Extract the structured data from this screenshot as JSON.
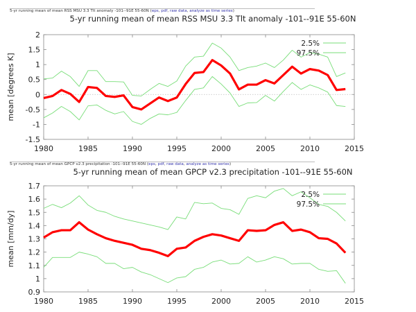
{
  "links_label": [
    "eps",
    "pdf",
    "raw data",
    "analyze as time series"
  ],
  "chart_data": [
    {
      "type": "line",
      "caption": "5-yr running mean of mean RSS MSU 3.3 Tlt anomaly -101--91E 55-60N",
      "title": "5-yr running mean of mean RSS MSU 3.3 Tlt anomaly -101--91E 55-60N",
      "xlabel": "",
      "ylabel": "mean [degrees K]",
      "xlim": [
        1980,
        2015
      ],
      "ylim": [
        -1.5,
        2
      ],
      "xticks": [
        "1980",
        "1985",
        "1990",
        "1995",
        "2000",
        "2005",
        "2010",
        "2015"
      ],
      "yticks": [
        "-1.5",
        "-1",
        "-0.5",
        "0",
        "0.5",
        "1",
        "1.5",
        "2"
      ],
      "zero_line": true,
      "legend_placement": "top-right",
      "x": [
        1980,
        1981,
        1982,
        1983,
        1984,
        1985,
        1986,
        1987,
        1988,
        1989,
        1990,
        1991,
        1992,
        1993,
        1994,
        1995,
        1996,
        1997,
        1998,
        1999,
        2000,
        2001,
        2002,
        2003,
        2004,
        2005,
        2006,
        2007,
        2008,
        2009,
        2010,
        2011,
        2012,
        2013,
        2014
      ],
      "series": [
        {
          "values": [
            -0.12,
            -0.05,
            0.15,
            0.02,
            -0.25,
            0.25,
            0.22,
            -0.05,
            -0.08,
            -0.03,
            -0.42,
            -0.5,
            -0.3,
            -0.1,
            -0.22,
            -0.1,
            0.35,
            0.72,
            0.75,
            1.15,
            0.97,
            0.7,
            0.17,
            0.33,
            0.33,
            0.48,
            0.37,
            0.65,
            0.93,
            0.7,
            0.85,
            0.8,
            0.65,
            0.15,
            0.18
          ],
          "color": "#ff0000"
        },
        {
          "name": "2.5%",
          "values": [
            -0.78,
            -0.62,
            -0.4,
            -0.57,
            -0.85,
            -0.38,
            -0.35,
            -0.53,
            -0.65,
            -0.57,
            -0.9,
            -1.0,
            -0.8,
            -0.65,
            -0.68,
            -0.6,
            -0.2,
            0.17,
            0.22,
            0.6,
            0.35,
            0.05,
            -0.4,
            -0.28,
            -0.27,
            -0.03,
            -0.22,
            0.1,
            0.4,
            0.17,
            0.32,
            0.22,
            0.08,
            -0.37,
            -0.4
          ],
          "color": "#77dd77"
        },
        {
          "name": "97.5%",
          "values": [
            0.52,
            0.55,
            0.78,
            0.6,
            0.27,
            0.8,
            0.8,
            0.43,
            0.43,
            0.42,
            -0.03,
            -0.05,
            0.17,
            0.37,
            0.27,
            0.45,
            0.95,
            1.25,
            1.28,
            1.72,
            1.55,
            1.25,
            0.8,
            0.9,
            0.95,
            1.05,
            0.9,
            1.15,
            1.48,
            1.25,
            1.4,
            1.35,
            1.25,
            0.6,
            0.72
          ],
          "color": "#77dd77"
        }
      ]
    },
    {
      "type": "line",
      "caption": "5-yr running mean of mean GPCP v2.3 precipitation -101--91E 55-60N",
      "title": "5-yr running mean of mean GPCP v2.3 precipitation -101--91E 55-60N",
      "xlabel": "",
      "ylabel": "mean [mm/dy]",
      "xlim": [
        1980,
        2015
      ],
      "ylim": [
        0.9,
        1.7
      ],
      "xticks": [
        "1980",
        "1985",
        "1990",
        "1995",
        "2000",
        "2005",
        "2010",
        "2015"
      ],
      "yticks": [
        "0.9",
        "1",
        "1.1",
        "1.2",
        "1.3",
        "1.4",
        "1.5",
        "1.6",
        "1.7"
      ],
      "zero_line": false,
      "legend_placement": "top-right",
      "x": [
        1980,
        1981,
        1982,
        1983,
        1984,
        1985,
        1986,
        1987,
        1988,
        1989,
        1990,
        1991,
        1992,
        1993,
        1994,
        1995,
        1996,
        1997,
        1998,
        1999,
        2000,
        2001,
        2002,
        2003,
        2004,
        2005,
        2006,
        2007,
        2008,
        2009,
        2010,
        2011,
        2012,
        2013,
        2014
      ],
      "series": [
        {
          "values": [
            1.31,
            1.35,
            1.365,
            1.365,
            1.425,
            1.37,
            1.335,
            1.305,
            1.285,
            1.27,
            1.255,
            1.225,
            1.215,
            1.195,
            1.17,
            1.225,
            1.235,
            1.285,
            1.315,
            1.335,
            1.325,
            1.305,
            1.285,
            1.365,
            1.36,
            1.365,
            1.405,
            1.425,
            1.36,
            1.37,
            1.35,
            1.305,
            1.3,
            1.265,
            1.195
          ],
          "color": "#ff0000"
        },
        {
          "name": "2.5%",
          "values": [
            1.085,
            1.16,
            1.16,
            1.16,
            1.2,
            1.185,
            1.165,
            1.115,
            1.115,
            1.075,
            1.085,
            1.05,
            1.03,
            1.0,
            0.97,
            1.005,
            1.015,
            1.07,
            1.085,
            1.125,
            1.14,
            1.11,
            1.115,
            1.165,
            1.125,
            1.14,
            1.165,
            1.15,
            1.11,
            1.115,
            1.115,
            1.07,
            1.055,
            1.06,
            0.965
          ],
          "color": "#77dd77"
        },
        {
          "name": "97.5%",
          "values": [
            1.53,
            1.56,
            1.535,
            1.57,
            1.625,
            1.555,
            1.515,
            1.5,
            1.47,
            1.45,
            1.435,
            1.42,
            1.405,
            1.39,
            1.37,
            1.465,
            1.45,
            1.575,
            1.565,
            1.57,
            1.53,
            1.52,
            1.485,
            1.605,
            1.625,
            1.61,
            1.66,
            1.68,
            1.625,
            1.655,
            1.61,
            1.56,
            1.545,
            1.5,
            1.435
          ],
          "color": "#77dd77"
        }
      ]
    }
  ]
}
